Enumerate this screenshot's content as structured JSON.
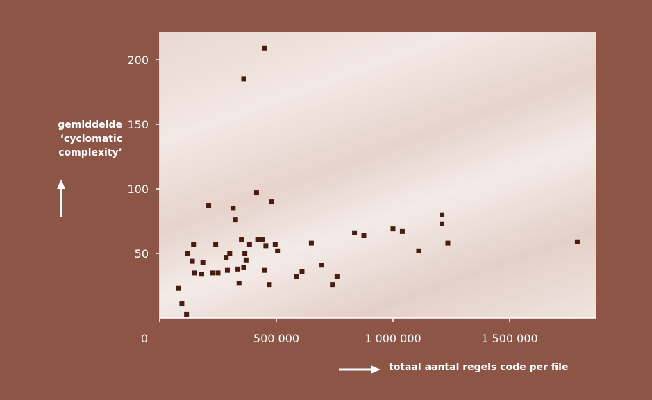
{
  "chart_data": {
    "type": "scatter",
    "title": "",
    "xlabel": "totaal aantal regels code per file",
    "ylabel_lines": [
      "gemiddelde",
      "‘cyclomatic",
      "complexity’"
    ],
    "xlim": [
      0,
      1900000
    ],
    "ylim": [
      0,
      220
    ],
    "xticks": [
      0,
      500000,
      1000000,
      1500000
    ],
    "xtick_labels": [
      "0",
      "500 000",
      "1 000 000",
      "1 500 000"
    ],
    "yticks": [
      50,
      100,
      150,
      200
    ],
    "ytick_labels": [
      "50",
      "100",
      "150",
      "200"
    ],
    "grid": false,
    "legend": "none",
    "colors": {
      "marker": "#4a1c10",
      "axis": "#ffffff",
      "background": "#8c5546",
      "text": "#ffffff"
    },
    "points": [
      {
        "x": 80000,
        "y": 23
      },
      {
        "x": 95000,
        "y": 11
      },
      {
        "x": 115000,
        "y": 3
      },
      {
        "x": 120000,
        "y": 50
      },
      {
        "x": 140000,
        "y": 44
      },
      {
        "x": 145000,
        "y": 57
      },
      {
        "x": 150000,
        "y": 35
      },
      {
        "x": 180000,
        "y": 34
      },
      {
        "x": 185000,
        "y": 43
      },
      {
        "x": 210000,
        "y": 87
      },
      {
        "x": 225000,
        "y": 35
      },
      {
        "x": 240000,
        "y": 57
      },
      {
        "x": 250000,
        "y": 35
      },
      {
        "x": 285000,
        "y": 47
      },
      {
        "x": 290000,
        "y": 37
      },
      {
        "x": 300000,
        "y": 50
      },
      {
        "x": 315000,
        "y": 85
      },
      {
        "x": 325000,
        "y": 76
      },
      {
        "x": 335000,
        "y": 38
      },
      {
        "x": 340000,
        "y": 27
      },
      {
        "x": 350000,
        "y": 61
      },
      {
        "x": 360000,
        "y": 185
      },
      {
        "x": 360000,
        "y": 39
      },
      {
        "x": 365000,
        "y": 50
      },
      {
        "x": 370000,
        "y": 45
      },
      {
        "x": 385000,
        "y": 57
      },
      {
        "x": 415000,
        "y": 97
      },
      {
        "x": 420000,
        "y": 61
      },
      {
        "x": 440000,
        "y": 61
      },
      {
        "x": 450000,
        "y": 209
      },
      {
        "x": 450000,
        "y": 37
      },
      {
        "x": 455000,
        "y": 56
      },
      {
        "x": 470000,
        "y": 26
      },
      {
        "x": 480000,
        "y": 90
      },
      {
        "x": 495000,
        "y": 57
      },
      {
        "x": 505000,
        "y": 52
      },
      {
        "x": 585000,
        "y": 32
      },
      {
        "x": 610000,
        "y": 36
      },
      {
        "x": 650000,
        "y": 58
      },
      {
        "x": 695000,
        "y": 41
      },
      {
        "x": 740000,
        "y": 26
      },
      {
        "x": 760000,
        "y": 32
      },
      {
        "x": 835000,
        "y": 66
      },
      {
        "x": 875000,
        "y": 64
      },
      {
        "x": 1000000,
        "y": 69
      },
      {
        "x": 1040000,
        "y": 67
      },
      {
        "x": 1110000,
        "y": 52
      },
      {
        "x": 1210000,
        "y": 80
      },
      {
        "x": 1210000,
        "y": 73
      },
      {
        "x": 1235000,
        "y": 58
      },
      {
        "x": 1790000,
        "y": 59
      }
    ]
  }
}
